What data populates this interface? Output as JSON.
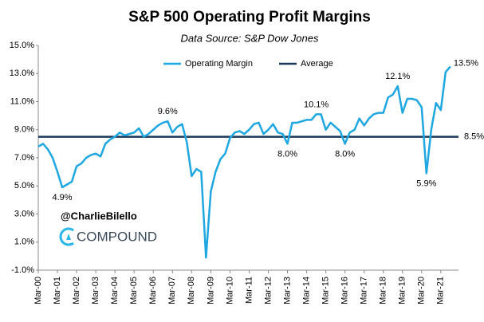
{
  "chart_data": {
    "type": "line",
    "title": "S&P 500 Operating Profit Margins",
    "subtitle": "Data Source: S&P Dow Jones",
    "watermark": "@CharlieBilello",
    "brand": "COMPOUND",
    "categories": [
      "Mar-00",
      null,
      null,
      null,
      "Mar-01",
      null,
      null,
      null,
      "Mar-02",
      null,
      null,
      null,
      "Mar-03",
      null,
      null,
      null,
      "Mar-04",
      null,
      null,
      null,
      "Mar-05",
      null,
      null,
      null,
      "Mar-06",
      null,
      null,
      null,
      "Mar-07",
      null,
      null,
      null,
      "Mar-08",
      null,
      null,
      null,
      "Mar-09",
      null,
      null,
      null,
      "Mar-10",
      null,
      null,
      null,
      "Mar-11",
      null,
      null,
      null,
      "Mar-12",
      null,
      null,
      null,
      "Mar-13",
      null,
      null,
      null,
      "Mar-14",
      null,
      null,
      null,
      "Mar-15",
      null,
      null,
      null,
      "Mar-16",
      null,
      null,
      null,
      "Mar-17",
      null,
      null,
      null,
      "Mar-18",
      null,
      null,
      null,
      "Mar-19",
      null,
      null,
      null,
      "Mar-20",
      null,
      null,
      null,
      "Mar-21",
      null,
      null
    ],
    "series": [
      {
        "name": "Operating Margin",
        "color": "#1ea7e1",
        "values": [
          7.8,
          8.0,
          7.6,
          7.0,
          6.0,
          4.9,
          5.1,
          5.3,
          6.4,
          6.6,
          7.0,
          7.2,
          7.3,
          7.1,
          8.0,
          8.3,
          8.5,
          8.8,
          8.6,
          8.7,
          8.8,
          9.1,
          8.5,
          8.7,
          9.0,
          9.3,
          9.5,
          9.6,
          8.8,
          9.2,
          9.4,
          8.1,
          5.7,
          6.2,
          6.0,
          -0.1,
          4.6,
          6.0,
          6.9,
          7.3,
          8.4,
          8.8,
          8.9,
          8.7,
          9.0,
          9.4,
          9.5,
          8.7,
          9.0,
          9.4,
          8.8,
          8.7,
          8.0,
          9.5,
          9.5,
          9.6,
          9.7,
          9.7,
          10.1,
          10.1,
          9.0,
          9.5,
          9.2,
          8.9,
          8.0,
          8.8,
          9.0,
          9.8,
          9.3,
          9.8,
          10.1,
          10.2,
          10.2,
          11.3,
          11.5,
          12.1,
          10.2,
          11.2,
          11.2,
          11.1,
          10.6,
          5.9,
          9.0,
          10.9,
          10.4,
          13.1,
          13.5
        ],
        "value_labels": [
          null,
          null,
          null,
          null,
          null,
          "4.9%",
          null,
          null,
          null,
          null,
          null,
          null,
          null,
          null,
          null,
          null,
          null,
          null,
          null,
          null,
          null,
          null,
          null,
          null,
          null,
          null,
          null,
          "9.6%",
          null,
          null,
          null,
          null,
          null,
          null,
          null,
          null,
          null,
          null,
          null,
          null,
          null,
          null,
          null,
          null,
          null,
          null,
          null,
          null,
          null,
          null,
          null,
          null,
          "8.0%",
          null,
          null,
          null,
          null,
          null,
          "10.1%",
          null,
          null,
          null,
          null,
          null,
          "8.0%",
          null,
          null,
          null,
          null,
          null,
          null,
          null,
          null,
          null,
          null,
          "12.1%",
          null,
          null,
          null,
          null,
          null,
          "5.9%",
          null,
          null,
          null,
          null,
          "13.5%"
        ]
      }
    ],
    "average": {
      "name": "Average",
      "color": "#1b3a5c",
      "value": 8.5,
      "value_label": "8.5%"
    },
    "ylim": [
      -1.0,
      15.0
    ],
    "yticks": [
      {
        "value": -1.0,
        "label": "-1.0%"
      },
      {
        "value": 1.0,
        "label": "1.0%"
      },
      {
        "value": 3.0,
        "label": "3.0%"
      },
      {
        "value": 5.0,
        "label": "5.0%"
      },
      {
        "value": 7.0,
        "label": "7.0%"
      },
      {
        "value": 9.0,
        "label": "9.0%"
      },
      {
        "value": 11.0,
        "label": "11.0%"
      },
      {
        "value": 13.0,
        "label": "13.0%"
      },
      {
        "value": 15.0,
        "label": "15.0%"
      }
    ],
    "grid": false
  }
}
